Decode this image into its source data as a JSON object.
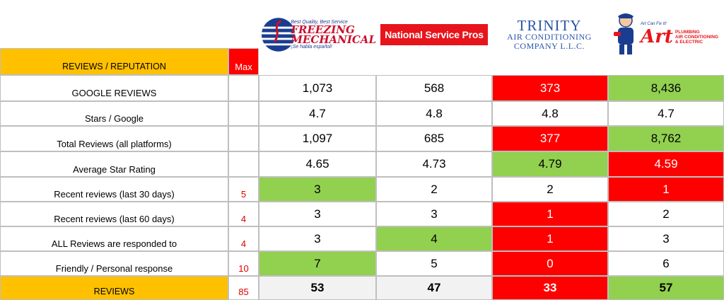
{
  "header": {
    "label": "REVIEWS / REPUTATION",
    "max_label": "Max"
  },
  "logos": {
    "freezing": {
      "brand": "FREEZING",
      "sub": "MECHANICAL",
      "tagline": "Best Quality, Best Service",
      "spanish": "¡Se habla español!"
    },
    "nsp": {
      "brand": "National Service Pros"
    },
    "trinity": {
      "line1": "TRINITY",
      "line2": "AIR CONDITIONING",
      "line3": "COMPANY L.L.C."
    },
    "art": {
      "tagline": "Art Can Fix It!",
      "word": "Art",
      "line1": "PLUMBING",
      "line2": "AIR CONDITIONING",
      "line3": "& ELECTRIC"
    }
  },
  "rows": [
    {
      "label": "GOOGLE REVIEWS",
      "max": "",
      "values": [
        "1,073",
        "568",
        "373",
        "8,436"
      ],
      "colors": [
        "",
        "",
        "red",
        "green"
      ]
    },
    {
      "label": "Stars / Google",
      "max": "",
      "values": [
        "4.7",
        "4.8",
        "4.8",
        "4.7"
      ],
      "colors": [
        "",
        "",
        "",
        ""
      ]
    },
    {
      "label": "Total Reviews (all platforms)",
      "max": "",
      "values": [
        "1,097",
        "685",
        "377",
        "8,762"
      ],
      "colors": [
        "",
        "",
        "red",
        "green"
      ]
    },
    {
      "label": "Average Star Rating",
      "max": "",
      "values": [
        "4.65",
        "4.73",
        "4.79",
        "4.59"
      ],
      "colors": [
        "",
        "",
        "green",
        "red"
      ]
    },
    {
      "label": "Recent reviews (last 30 days)",
      "max": "5",
      "values": [
        "3",
        "2",
        "2",
        "1"
      ],
      "colors": [
        "green",
        "",
        "",
        "red"
      ]
    },
    {
      "label": "Recent reviews (last 60 days)",
      "max": "4",
      "values": [
        "3",
        "3",
        "1",
        "2"
      ],
      "colors": [
        "",
        "",
        "red",
        ""
      ]
    },
    {
      "label": "ALL Reviews are responded to",
      "max": "4",
      "values": [
        "3",
        "4",
        "1",
        "3"
      ],
      "colors": [
        "",
        "green",
        "red",
        ""
      ]
    },
    {
      "label": "Friendly / Personal response",
      "max": "10",
      "values": [
        "7",
        "5",
        "0",
        "6"
      ],
      "colors": [
        "green",
        "",
        "red",
        ""
      ]
    }
  ],
  "footer": {
    "label": "REVIEWS",
    "max": "85",
    "values": [
      "53",
      "47",
      "33",
      "57"
    ],
    "colors": [
      "grey",
      "grey",
      "red",
      "green"
    ]
  },
  "colors": {
    "header_bg": "#ffc000",
    "red": "#ff0000",
    "green": "#92d050",
    "grey": "#f2f2f2"
  }
}
